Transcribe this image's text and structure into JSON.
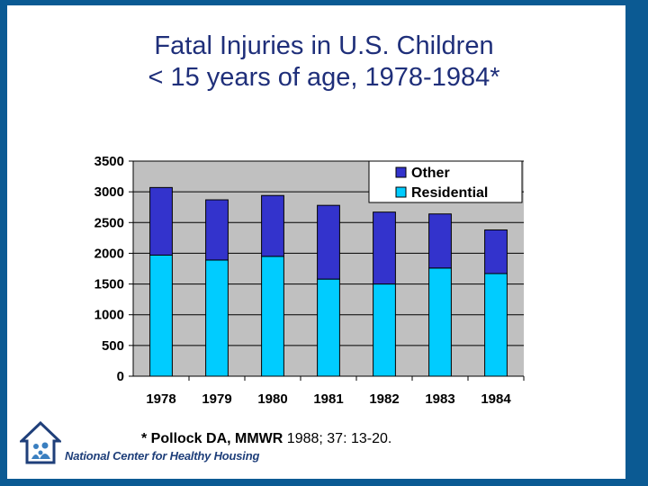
{
  "title": {
    "line1": "Fatal Injuries in U.S. Children",
    "line2": "< 15 years of age, 1978-1984*"
  },
  "chart_data": {
    "type": "bar",
    "stacked": true,
    "categories": [
      "1978",
      "1979",
      "1980",
      "1981",
      "1982",
      "1983",
      "1984"
    ],
    "series": [
      {
        "name": "Residential",
        "values": [
          1970,
          1890,
          1950,
          1580,
          1500,
          1760,
          1670
        ],
        "color": "#00ccff"
      },
      {
        "name": "Other",
        "values": [
          1100,
          980,
          990,
          1200,
          1170,
          880,
          710
        ],
        "color": "#3333cc"
      }
    ],
    "ylim": [
      0,
      3500
    ],
    "yticks": [
      "0",
      "500",
      "1000",
      "1500",
      "2000",
      "2500",
      "3000",
      "3500"
    ],
    "grid": true,
    "legend_position": "top-right",
    "legend_order": [
      "Other",
      "Residential"
    ],
    "plot_background": "#c0c0c0"
  },
  "footnote": {
    "bold": "* Pollock DA, MMWR",
    "rest": " 1988; 37: 13-20."
  },
  "footer": {
    "org_name": "National Center for Healthy Housing",
    "logo_icon": "house-family-icon"
  },
  "colors": {
    "frame": "#0b5a93",
    "title": "#1f2f7a"
  }
}
